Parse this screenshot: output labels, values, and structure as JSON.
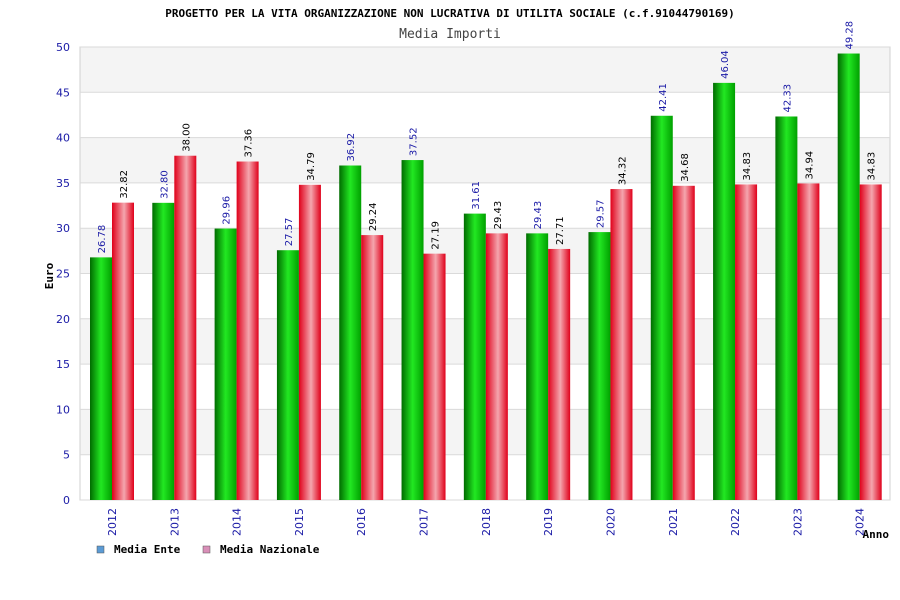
{
  "chart_data": {
    "type": "bar",
    "title": "PROGETTO PER LA VITA ORGANIZZAZIONE NON LUCRATIVA DI UTILITA SOCIALE (c.f.91044790169)",
    "subtitle": "Media Importi",
    "xlabel": "Anno",
    "ylabel": "Euro",
    "ylim": [
      0,
      50
    ],
    "yticks": [
      0,
      5,
      10,
      15,
      20,
      25,
      30,
      35,
      40,
      45,
      50
    ],
    "categories": [
      "2012",
      "2013",
      "2014",
      "2015",
      "2016",
      "2017",
      "2018",
      "2019",
      "2020",
      "2021",
      "2022",
      "2023",
      "2024"
    ],
    "series": [
      {
        "name": "Media Ente",
        "values": [
          26.78,
          32.8,
          29.96,
          27.57,
          36.92,
          37.52,
          31.61,
          29.43,
          29.57,
          42.41,
          46.04,
          42.33,
          49.28
        ],
        "labels": [
          "26.78",
          "32.80",
          "29.96",
          "27.57",
          "36.92",
          "37.52",
          "31.61",
          "29.43",
          "29.57",
          "42.41",
          "46.04",
          "42.33",
          "49.28"
        ],
        "color": "#00c000",
        "legend_color": "#5b9bd5"
      },
      {
        "name": "Media Nazionale",
        "values": [
          32.82,
          38.0,
          37.36,
          34.79,
          29.24,
          27.19,
          29.43,
          27.71,
          34.32,
          34.68,
          34.83,
          34.94,
          34.83
        ],
        "labels": [
          "32.82",
          "38.00",
          "37.36",
          "34.79",
          "29.24",
          "27.19",
          "29.43",
          "27.71",
          "34.32",
          "34.68",
          "34.83",
          "34.94",
          "34.83"
        ],
        "color": "#ee1122",
        "legend_color": "#d98fb8"
      }
    ],
    "grid": true,
    "legend_position": "bottom-left"
  }
}
